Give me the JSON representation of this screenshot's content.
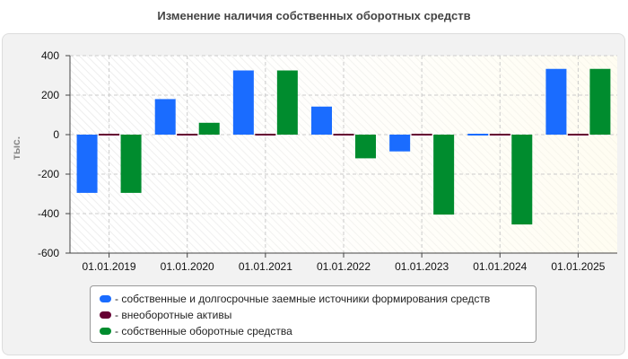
{
  "chart_data": {
    "type": "bar",
    "title": "Изменение наличия собственных оборотных средств",
    "ylabel": "тыс.",
    "xlabel": "",
    "ylim": [
      -600,
      400
    ],
    "yticks": [
      400,
      200,
      0,
      -200,
      -400,
      -600
    ],
    "categories": [
      "01.01.2019",
      "01.01.2020",
      "01.01.2021",
      "01.01.2022",
      "01.01.2023",
      "01.01.2024",
      "01.01.2025"
    ],
    "series": [
      {
        "name": "собственные и долгосрочные заемные источники формирования средств",
        "color": "#1a6cff",
        "values": [
          -295,
          180,
          325,
          142,
          -85,
          -5,
          333
        ]
      },
      {
        "name": "внеоборотные активы",
        "color": "#660033",
        "values": [
          5,
          5,
          5,
          5,
          5,
          5,
          5
        ]
      },
      {
        "name": "собственные оборотные средства",
        "color": "#008c2e",
        "values": [
          -295,
          60,
          325,
          -120,
          -405,
          -455,
          333
        ]
      }
    ],
    "legend": "bottom",
    "grid": true
  }
}
